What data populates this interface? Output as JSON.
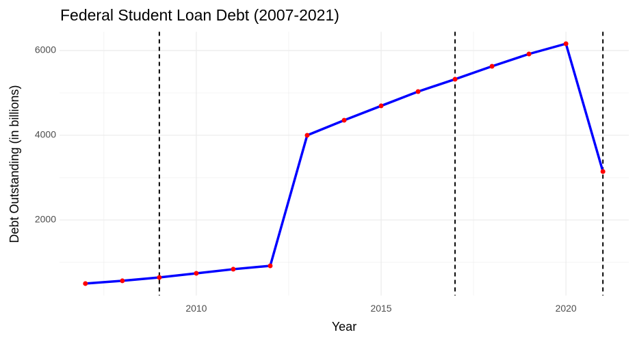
{
  "chart_data": {
    "type": "line",
    "title": "Federal Student Loan Debt (2007-2021)",
    "x_label": "Year",
    "y_label": "Debt Outstanding (in billions)",
    "x": [
      2007,
      2008,
      2009,
      2010,
      2011,
      2012,
      2013,
      2014,
      2015,
      2016,
      2017,
      2018,
      2019,
      2020,
      2021
    ],
    "series": [
      {
        "name": "Debt",
        "color": "#0000ff",
        "point_color": "#ff0000",
        "values": [
          500,
          565,
          645,
          742,
          839,
          919,
          4000,
          4355,
          4694,
          5032,
          5323,
          5629,
          5919,
          6161,
          3145
        ]
      }
    ],
    "xlim": [
      2006.3,
      2021.7
    ],
    "ylim": [
      217,
      6443
    ],
    "xticks": [
      2010,
      2015,
      2020
    ],
    "yticks": [
      2000,
      4000,
      6000
    ],
    "x_minor_gridlines": [
      2007.5,
      2012.5,
      2017.5
    ],
    "y_minor_gridlines": [
      1000,
      3000,
      5000
    ],
    "vlines": [
      2009,
      2017,
      2021
    ],
    "grid": true
  }
}
